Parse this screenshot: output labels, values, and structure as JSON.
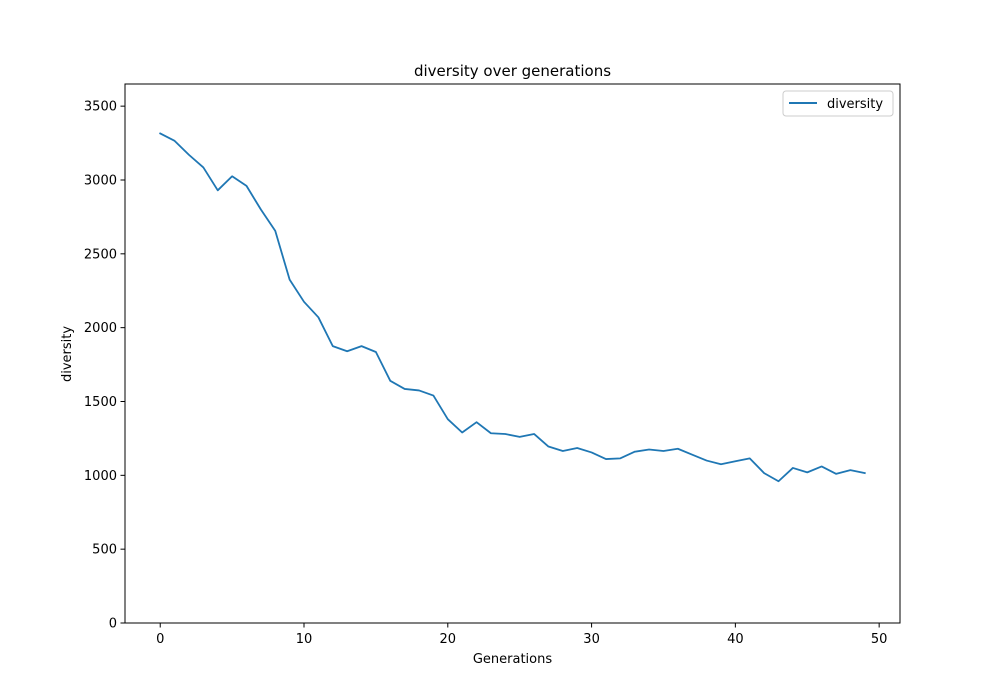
{
  "chart_data": {
    "type": "line",
    "title": "diversity over generations",
    "xlabel": "Generations",
    "ylabel": "diversity",
    "xlim": [
      -2.45,
      51.45
    ],
    "ylim": [
      0,
      3650
    ],
    "xticks": [
      0,
      10,
      20,
      30,
      40,
      50
    ],
    "yticks": [
      0,
      500,
      1000,
      1500,
      2000,
      2500,
      3000,
      3500
    ],
    "grid": false,
    "legend_position": "top-right",
    "series": [
      {
        "name": "diversity",
        "color": "#1f77b4",
        "x": [
          0,
          1,
          2,
          3,
          4,
          5,
          6,
          7,
          8,
          9,
          10,
          11,
          12,
          13,
          14,
          15,
          16,
          17,
          18,
          19,
          20,
          21,
          22,
          23,
          24,
          25,
          26,
          27,
          28,
          29,
          30,
          31,
          32,
          33,
          34,
          35,
          36,
          37,
          38,
          39,
          40,
          41,
          42,
          43,
          44,
          45,
          46,
          47,
          48,
          49
        ],
        "y": [
          3315,
          3265,
          3170,
          3085,
          2930,
          3025,
          2960,
          2800,
          2655,
          2325,
          2175,
          2070,
          1875,
          1840,
          1875,
          1835,
          1640,
          1585,
          1575,
          1540,
          1380,
          1290,
          1360,
          1285,
          1280,
          1260,
          1280,
          1195,
          1165,
          1185,
          1155,
          1110,
          1115,
          1160,
          1175,
          1165,
          1180,
          1140,
          1100,
          1075,
          1095,
          1115,
          1015,
          960,
          1050,
          1020,
          1060,
          1010,
          1035,
          1015
        ]
      }
    ]
  }
}
